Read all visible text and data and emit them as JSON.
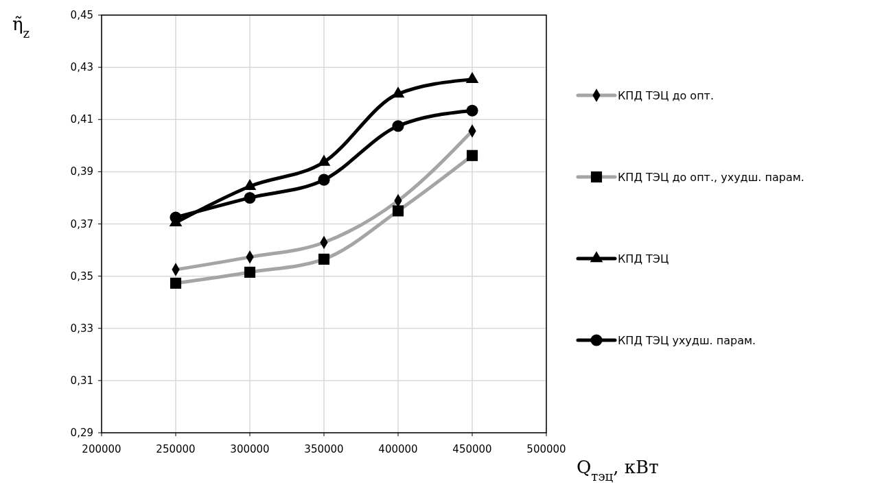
{
  "chart_data": {
    "type": "line",
    "xlabel": "Q$_{тэц}$, кВт",
    "ylabel": "η̃$_{z}$",
    "xlim": [
      200000,
      500000
    ],
    "xticks": [
      200000,
      250000,
      300000,
      350000,
      400000,
      450000,
      500000
    ],
    "ylim": [
      0.29,
      0.45
    ],
    "yticks": [
      {
        "value": 0.29,
        "label": "0,29"
      },
      {
        "value": 0.31,
        "label": "0,31"
      },
      {
        "value": 0.33,
        "label": "0,33"
      },
      {
        "value": 0.35,
        "label": "0,35"
      },
      {
        "value": 0.37,
        "label": "0,37"
      },
      {
        "value": 0.39,
        "label": "0,39"
      },
      {
        "value": 0.41,
        "label": "0,41"
      },
      {
        "value": 0.43,
        "label": "0,43"
      },
      {
        "value": 0.45,
        "label": "0,45"
      }
    ],
    "x": [
      250000,
      300000,
      350000,
      400000,
      450000
    ],
    "grid": true,
    "legend": "right",
    "line_style": "solid",
    "series": [
      {
        "name": "КПД ТЭЦ до опт.",
        "color": "#a5a5a5",
        "marker": "diamond",
        "values": [
          0.3525,
          0.3573,
          0.3629,
          0.3789,
          0.4056
        ]
      },
      {
        "name": "КПД ТЭЦ до опт., ухудш. парам.",
        "color": "#a5a5a5",
        "marker": "square",
        "values": [
          0.3473,
          0.3515,
          0.3565,
          0.375,
          0.3962
        ]
      },
      {
        "name": "КПД ТЭЦ",
        "color": "#000000",
        "marker": "triangle",
        "values": [
          0.3705,
          0.3844,
          0.3937,
          0.4198,
          0.4254
        ]
      },
      {
        "name": "КПД ТЭЦ ухудш. парам.",
        "color": "#000000",
        "marker": "circle",
        "values": [
          0.3725,
          0.38,
          0.3869,
          0.4075,
          0.4134
        ]
      }
    ]
  }
}
